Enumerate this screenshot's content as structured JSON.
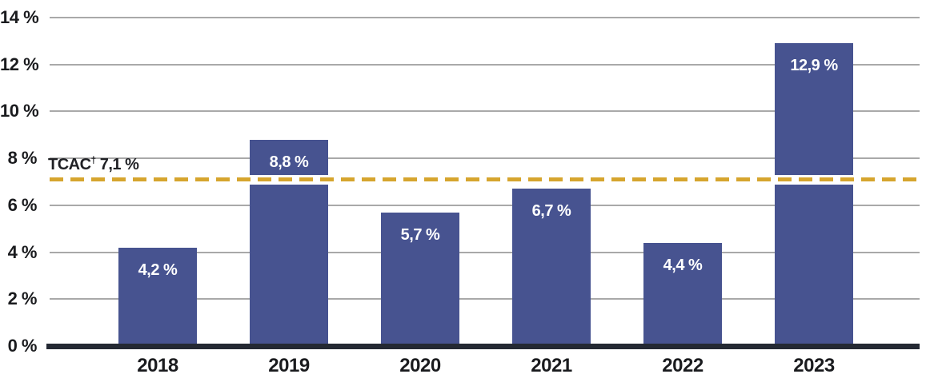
{
  "chart_data": {
    "type": "bar",
    "title": "",
    "xlabel": "",
    "ylabel": "",
    "categories": [
      "2018",
      "2019",
      "2020",
      "2021",
      "2022",
      "2023"
    ],
    "values": [
      4.2,
      8.8,
      5.7,
      6.7,
      4.4,
      12.9
    ],
    "value_labels": [
      "4,2 %",
      "8,8 %",
      "5,7 %",
      "6,7 %",
      "4,4 %",
      "12,9 %"
    ],
    "y_ticks": [
      0,
      2,
      4,
      6,
      8,
      10,
      12,
      14
    ],
    "y_tick_labels": [
      "0 %",
      "2 %",
      "4 %",
      "6 %",
      "8 %",
      "10 %",
      "12 %",
      "14 %"
    ],
    "ylim": [
      0,
      14
    ],
    "grid": "horizontal",
    "legend": "none",
    "reference_line": {
      "value": 7.1,
      "label_prefix": "TCAC",
      "label_sup": "†",
      "label_value": "7,1 %",
      "style": "dashed",
      "color": "#d6a52e"
    },
    "colors": {
      "bar": "#475390",
      "grid": "#a9a9a9",
      "axis": "#242933",
      "bar_label": "#ffffff",
      "tick_label": "#1a1b1e",
      "ref_label": "#1f2024",
      "background": "#ffffff"
    }
  }
}
